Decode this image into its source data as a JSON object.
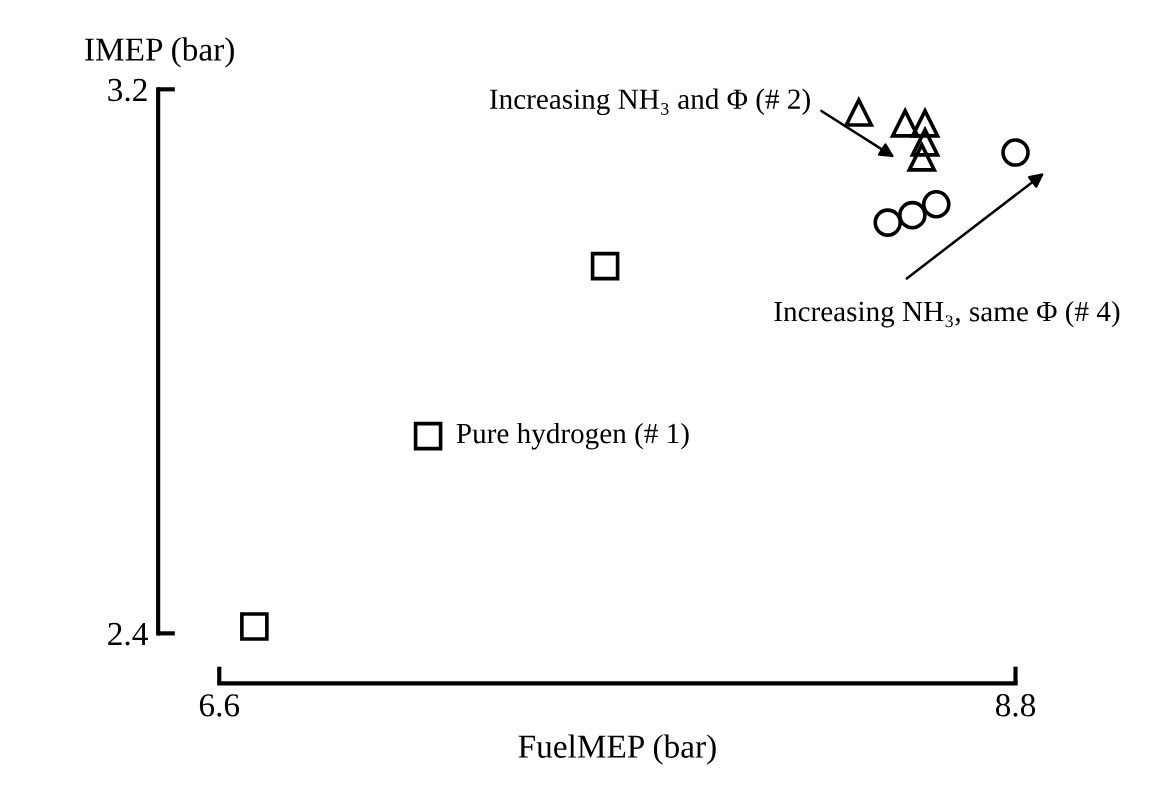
{
  "chart_data": {
    "type": "scatter",
    "xlabel": "FuelMEP (bar)",
    "ylabel": "IMEP (bar)",
    "xlim": [
      6.6,
      8.8
    ],
    "ylim": [
      2.4,
      3.2
    ],
    "xticks": [
      6.6,
      8.8
    ],
    "yticks": [
      2.4,
      3.2
    ],
    "grid": false,
    "legend": false,
    "series": [
      {
        "color": "#000000",
        "marker": "square",
        "x": [
          6.697,
          7.177,
          7.666
        ],
        "values": [
          2.41,
          2.69,
          2.94
        ]
      },
      {
        "color": "#000000",
        "marker": "triangle",
        "x": [
          8.367,
          8.495,
          8.55,
          8.55,
          8.541
        ],
        "values": [
          3.166,
          3.15,
          3.15,
          3.122,
          3.1
        ]
      },
      {
        "color": "#000000",
        "marker": "circle",
        "x": [
          8.447,
          8.515,
          8.581,
          8.8
        ],
        "values": [
          3.004,
          3.015,
          3.031,
          3.107
        ]
      }
    ],
    "annotations": [
      "Increasing NH₃ and Φ (# 2)",
      "Increasing NH₃, same Φ (# 4)",
      {
        "text": "Pure hydrogen (# 1)",
        "x": 7.177,
        "y": 2.69
      }
    ]
  }
}
